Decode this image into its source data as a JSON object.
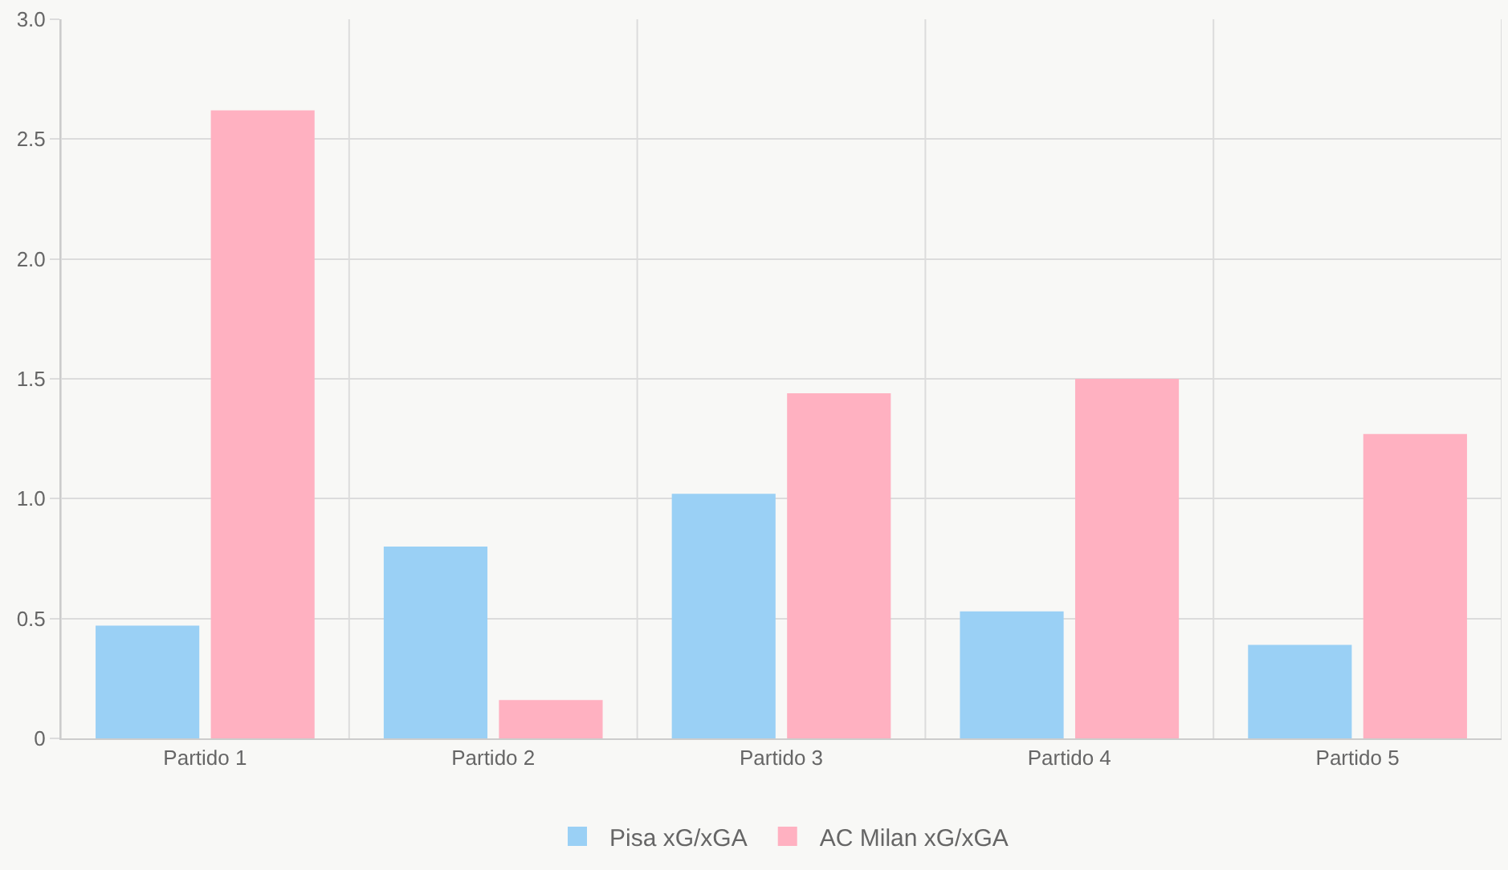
{
  "chart_data": {
    "type": "bar",
    "categories": [
      "Partido 1",
      "Partido 2",
      "Partido 3",
      "Partido 4",
      "Partido 5"
    ],
    "series": [
      {
        "name": "Pisa xG/xGA",
        "color": "#9ad0f5",
        "values": [
          0.47,
          0.8,
          1.02,
          0.53,
          0.39
        ]
      },
      {
        "name": "AC Milan xG/xGA",
        "color": "#ffb1c1",
        "values": [
          2.62,
          0.16,
          1.44,
          1.5,
          1.27
        ]
      }
    ],
    "ylim": [
      0,
      3
    ],
    "yticks": [
      0,
      0.5,
      {
        "value": 1,
        "label": "1.0"
      },
      1.5,
      {
        "value": 2,
        "label": "2.0"
      },
      2.5,
      {
        "value": 3,
        "label": "3.0"
      }
    ],
    "grid": true,
    "legend": "bottom"
  }
}
